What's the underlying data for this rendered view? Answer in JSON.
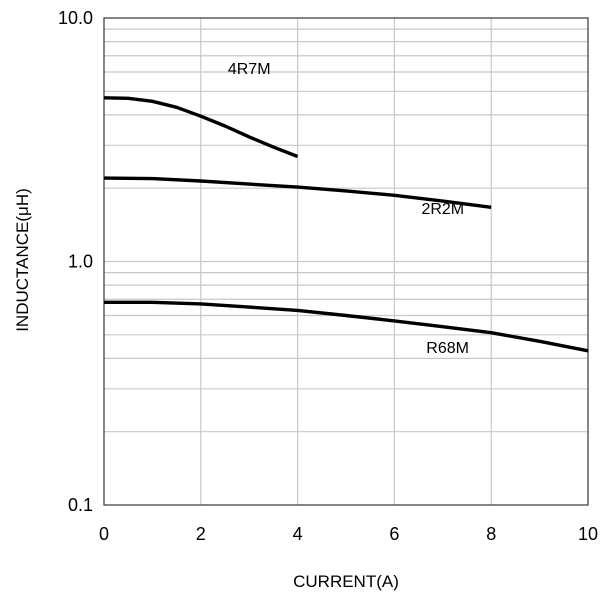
{
  "chart_data": {
    "type": "line",
    "title": "",
    "xlabel": "CURRENT(A)",
    "ylabel": "INDUCTANCE(μH)",
    "xlim": [
      0,
      10
    ],
    "ylim": [
      0.1,
      10
    ],
    "yscale": "log",
    "grid": true,
    "x_ticks": [
      0,
      2,
      4,
      6,
      8,
      10
    ],
    "x_tick_labels": [
      "0",
      "2",
      "4",
      "6",
      "8",
      "10"
    ],
    "y_ticks": [
      0.1,
      1,
      10
    ],
    "y_tick_labels": [
      "0.1",
      "1.0",
      "10.0"
    ],
    "series": [
      {
        "name": "4R7M",
        "color": "#000000",
        "x": [
          0,
          0.5,
          1,
          1.5,
          2,
          2.5,
          3,
          3.5,
          4
        ],
        "y": [
          4.7,
          4.68,
          4.55,
          4.3,
          3.95,
          3.6,
          3.25,
          2.95,
          2.7
        ]
      },
      {
        "name": "2R2M",
        "color": "#000000",
        "x": [
          0,
          1,
          2,
          3,
          4,
          5,
          6,
          7,
          8
        ],
        "y": [
          2.2,
          2.19,
          2.14,
          2.08,
          2.02,
          1.95,
          1.87,
          1.77,
          1.67
        ]
      },
      {
        "name": "R68M",
        "color": "#000000",
        "x": [
          0,
          1,
          2,
          3,
          4,
          5,
          6,
          7,
          8,
          9,
          10
        ],
        "y": [
          0.68,
          0.68,
          0.67,
          0.65,
          0.63,
          0.6,
          0.57,
          0.54,
          0.51,
          0.47,
          0.43
        ]
      }
    ]
  }
}
